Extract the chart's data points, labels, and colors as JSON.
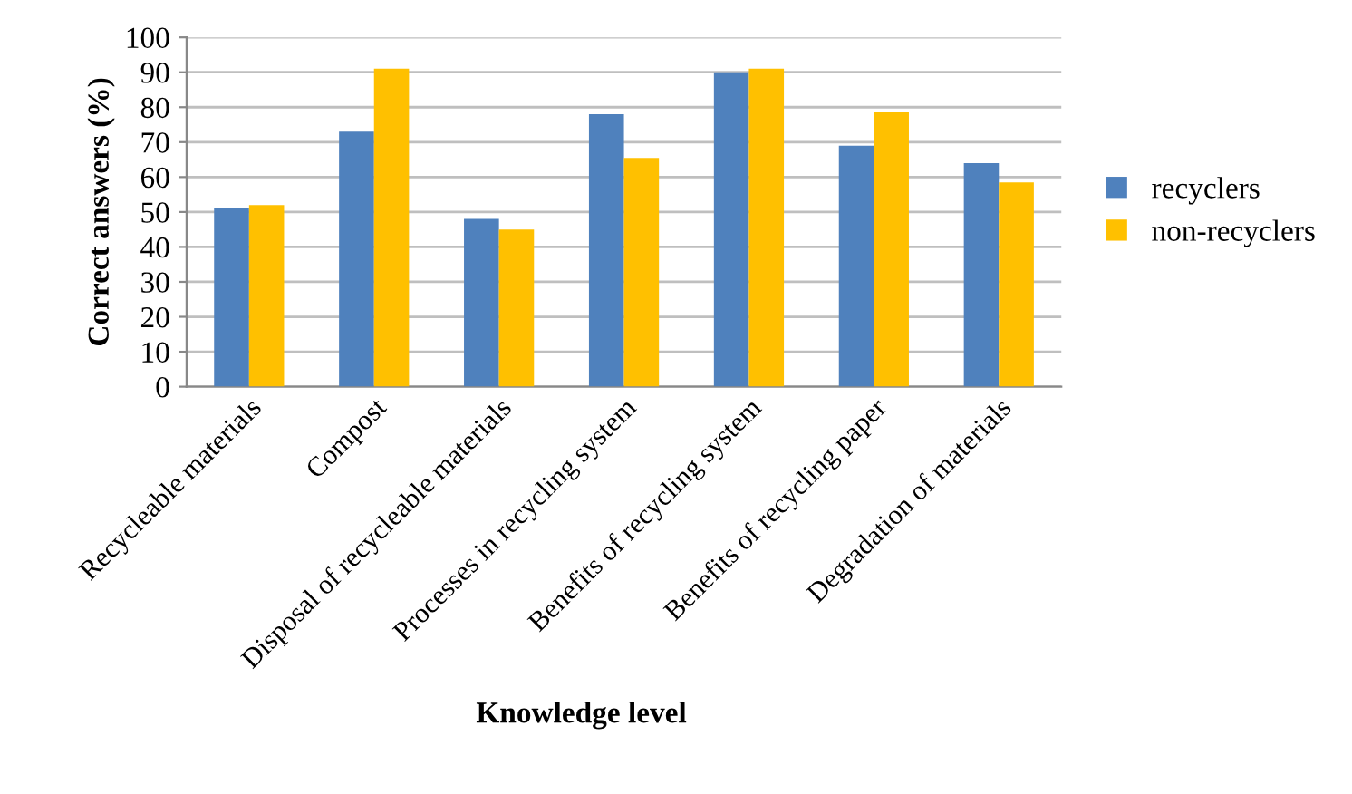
{
  "chart_data": {
    "type": "bar",
    "xlabel": "Knowledge level",
    "ylabel": "Correct answers (%)",
    "categories": [
      "Recycleable materials",
      "Compost",
      "Disposal of recycleable materials",
      "Processes in recycling system",
      "Benefits of recycling system",
      "Benefits of recycling paper",
      "Degradation of materials"
    ],
    "series": [
      {
        "name": "recyclers",
        "color": "#4f81bd",
        "values": [
          51,
          73,
          48,
          78,
          90,
          69,
          64
        ]
      },
      {
        "name": "non-recyclers",
        "color": "#ffc000",
        "values": [
          52,
          91,
          45,
          65.5,
          91,
          78.5,
          58.5
        ]
      }
    ],
    "ylim": [
      0,
      100
    ],
    "yticks": [
      0,
      10,
      20,
      30,
      40,
      50,
      60,
      70,
      80,
      90,
      100
    ],
    "grid": "y",
    "legend": "right"
  }
}
